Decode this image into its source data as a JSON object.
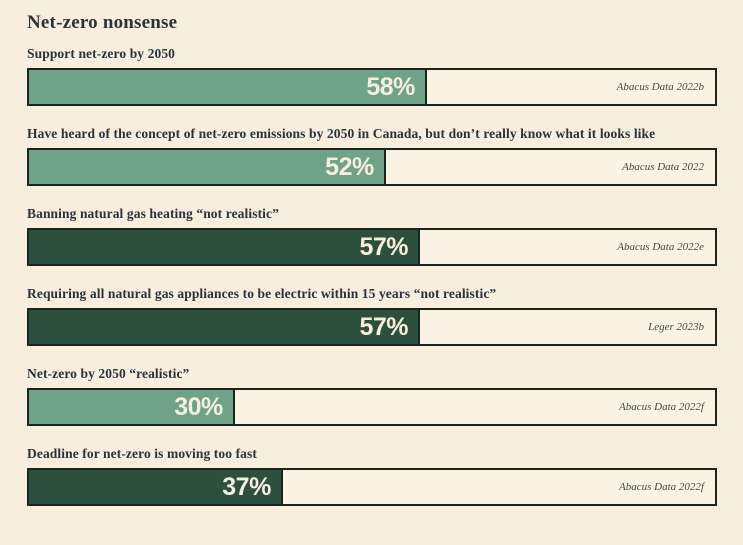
{
  "title": "Net-zero nonsense",
  "colors": {
    "background": "#f7eedd",
    "track": "#faf3e3",
    "border": "#1b241e",
    "light_green": "#6fa389",
    "dark_green": "#2d4f3e",
    "text_dark": "#2a333b",
    "value_text": "#f7eedd",
    "source_text": "#414a42"
  },
  "chart_data": {
    "type": "bar",
    "orientation": "horizontal",
    "title": "Net-zero nonsense",
    "xlim": [
      0,
      100
    ],
    "unit": "%",
    "grid": false,
    "legend": false,
    "bars": [
      {
        "label": "Support net-zero by 2050",
        "value": 58,
        "value_label": "58%",
        "source": "Abacus Data 2022b",
        "color": "#6fa389"
      },
      {
        "label": "Have heard of the concept of net-zero emissions by 2050 in Canada, but don’t really know what it looks like",
        "value": 52,
        "value_label": "52%",
        "source": "Abacus Data 2022",
        "color": "#6fa389"
      },
      {
        "label": "Banning natural gas heating “not realistic”",
        "value": 57,
        "value_label": "57%",
        "source": "Abacus Data 2022e",
        "color": "#2d4f3e"
      },
      {
        "label": "Requiring all natural gas appliances to be electric within 15 years “not realistic”",
        "value": 57,
        "value_label": "57%",
        "source": "Leger 2023b",
        "color": "#2d4f3e"
      },
      {
        "label": "Net-zero by 2050 “realistic”",
        "value": 30,
        "value_label": "30%",
        "source": "Abacus Data 2022f",
        "color": "#6fa389"
      },
      {
        "label": "Deadline for net-zero is moving too fast",
        "value": 37,
        "value_label": "37%",
        "source": "Abacus Data 2022f",
        "color": "#2d4f3e"
      }
    ]
  }
}
